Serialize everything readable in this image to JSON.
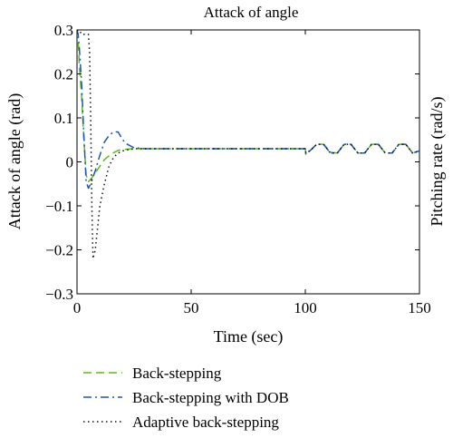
{
  "chart_data": {
    "type": "line",
    "title": "Attack of angle",
    "xlabel": "Time (sec)",
    "ylabel": "Attack of angle (rad)",
    "ylabel_right": "Pitching rate (rad/s)",
    "xlim": [
      0,
      150
    ],
    "ylim": [
      -0.3,
      0.3
    ],
    "xticks": [
      0,
      50,
      100,
      150
    ],
    "yticks": [
      -0.3,
      -0.2,
      -0.1,
      0,
      0.1,
      0.2,
      0.3
    ],
    "ytick_labels": [
      "−0.3",
      "−0.2",
      "−0.1",
      "0",
      "0.1",
      "0.2",
      "0.3"
    ],
    "grid": false,
    "legend_position": "bottom",
    "series": [
      {
        "name": "Back-stepping",
        "color": "#5cb81e",
        "dash": "dashed",
        "x": [
          0,
          0.5,
          1,
          2,
          3,
          4,
          5,
          6,
          8,
          10,
          12,
          15,
          18,
          20,
          25,
          30,
          50,
          100,
          100.2,
          102,
          105,
          108,
          111,
          114,
          117,
          120,
          123,
          126,
          129,
          132,
          135,
          138,
          141,
          144,
          147,
          150
        ],
        "y": [
          0.3,
          0.28,
          0.22,
          0.15,
          0.05,
          -0.03,
          -0.045,
          -0.04,
          -0.025,
          -0.01,
          0.005,
          0.018,
          0.026,
          0.028,
          0.03,
          0.03,
          0.03,
          0.03,
          0.02,
          0.025,
          0.04,
          0.04,
          0.022,
          0.02,
          0.04,
          0.04,
          0.02,
          0.02,
          0.04,
          0.04,
          0.02,
          0.02,
          0.04,
          0.04,
          0.02,
          0.025
        ]
      },
      {
        "name": "Back-stepping with DOB",
        "color": "#1a57b5",
        "dash": "dashdot",
        "x": [
          0,
          0.5,
          1,
          2,
          3,
          4,
          5,
          6,
          8,
          10,
          12,
          14,
          16,
          18,
          20,
          22,
          25,
          30,
          50,
          100,
          100.2,
          102,
          105,
          108,
          111,
          114,
          117,
          120,
          123,
          126,
          129,
          132,
          135,
          138,
          141,
          144,
          147,
          150
        ],
        "y": [
          0.3,
          0.29,
          0.26,
          0.18,
          0.06,
          -0.045,
          -0.06,
          -0.05,
          -0.02,
          0.015,
          0.045,
          0.06,
          0.068,
          0.068,
          0.05,
          0.04,
          0.032,
          0.03,
          0.03,
          0.03,
          0.018,
          0.025,
          0.04,
          0.04,
          0.02,
          0.02,
          0.04,
          0.04,
          0.02,
          0.02,
          0.04,
          0.04,
          0.02,
          0.02,
          0.04,
          0.04,
          0.02,
          0.025
        ]
      },
      {
        "name": "Adaptive back-stepping",
        "color": "#111111",
        "dash": "dotted",
        "x": [
          0,
          1,
          2,
          2.5,
          3,
          3.5,
          4,
          4.5,
          5,
          5.5,
          6,
          6.5,
          7,
          8,
          9,
          10,
          12,
          14,
          16,
          18,
          20,
          25,
          30,
          50,
          100,
          100.2,
          102,
          105,
          108,
          111,
          114,
          117,
          120,
          123,
          126,
          129,
          132,
          135,
          138,
          141,
          144,
          147,
          150
        ],
        "y": [
          0.3,
          0.3,
          0.29,
          0.29,
          0.29,
          0.29,
          0.29,
          0.29,
          0.29,
          0.25,
          0.1,
          -0.1,
          -0.22,
          -0.2,
          -0.15,
          -0.1,
          -0.05,
          -0.01,
          0.01,
          0.02,
          0.025,
          0.03,
          0.03,
          0.03,
          0.03,
          0.02,
          0.025,
          0.04,
          0.04,
          0.02,
          0.02,
          0.04,
          0.04,
          0.02,
          0.02,
          0.04,
          0.04,
          0.02,
          0.02,
          0.04,
          0.04,
          0.02,
          0.025
        ]
      }
    ]
  }
}
